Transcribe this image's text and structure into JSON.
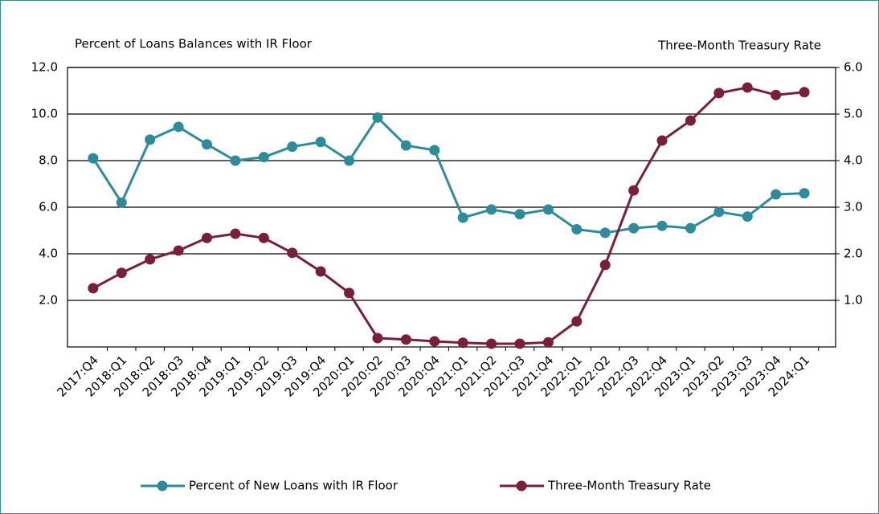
{
  "chart_data": {
    "type": "line",
    "y_label": "Percent of Loans Balances with IR Floor",
    "y2_label": "Three-Month Treasury Rate",
    "categories": [
      "2017:Q4",
      "2018:Q1",
      "2018:Q2",
      "2018:Q3",
      "2018:Q4",
      "2019:Q1",
      "2019:Q2",
      "2019:Q3",
      "2019:Q4",
      "2020:Q1",
      "2020:Q2",
      "2020:Q3",
      "2020:Q4",
      "2021:Q1",
      "2021:Q2",
      "2021:Q3",
      "2021:Q4",
      "2022:Q1",
      "2022:Q2",
      "2022:Q3",
      "2022:Q4",
      "2023:Q1",
      "2023:Q2",
      "2023:Q3",
      "2023:Q4",
      "2024:Q1"
    ],
    "series": [
      {
        "name": "Percent of New Loans with IR Floor",
        "color": "#2e8b9a",
        "values": [
          8.1,
          6.2,
          8.9,
          9.45,
          8.7,
          8.0,
          8.15,
          8.6,
          8.8,
          8.0,
          9.85,
          8.65,
          8.45,
          5.55,
          5.9,
          5.7,
          5.9,
          5.05,
          4.9,
          5.1,
          5.2,
          5.1,
          5.8,
          5.6,
          6.55,
          6.6
        ]
      },
      {
        "name": "Three-Month Treasury Rate",
        "color": "#7b1e3a",
        "axis": "y2",
        "values": [
          1.26,
          1.59,
          1.88,
          2.07,
          2.34,
          2.43,
          2.34,
          2.02,
          1.62,
          1.16,
          0.19,
          0.16,
          0.12,
          0.09,
          0.07,
          0.07,
          0.1,
          0.55,
          1.76,
          3.36,
          4.43,
          4.86,
          5.45,
          5.57,
          5.41,
          5.47
        ]
      }
    ],
    "ylim": [
      0,
      12
    ],
    "yticks": [
      {
        "value": 2,
        "label": "2.0"
      },
      {
        "value": 4,
        "label": "4.0"
      },
      {
        "value": 6,
        "label": "6.0"
      },
      {
        "value": 8,
        "label": "8.0"
      },
      {
        "value": 10,
        "label": "10.0"
      },
      {
        "value": 12,
        "label": "12.0"
      }
    ],
    "y2lim": [
      0,
      6
    ],
    "y2ticks": [
      {
        "value": 1,
        "label": "1.0"
      },
      {
        "value": 2,
        "label": "2.0"
      },
      {
        "value": 3,
        "label": "3.0"
      },
      {
        "value": 4,
        "label": "4.0"
      },
      {
        "value": 5,
        "label": "5.0"
      },
      {
        "value": 6,
        "label": "6.0"
      }
    ],
    "grid": true,
    "legend": "bottom"
  }
}
